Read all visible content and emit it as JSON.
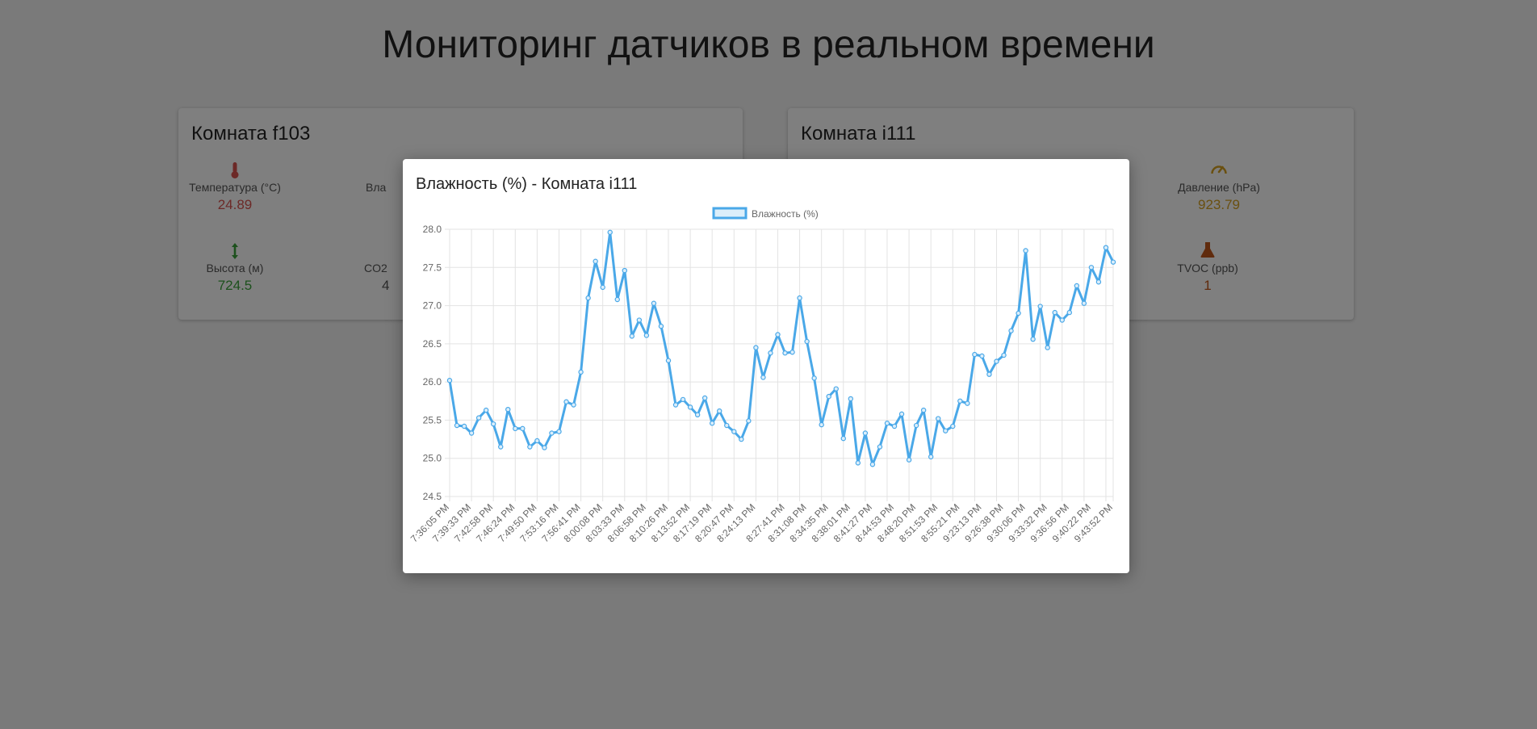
{
  "page": {
    "title": "Мониторинг датчиков в реальном времени"
  },
  "colors": {
    "temperature": "#d9534f",
    "altitude": "#3aa33a",
    "pressure": "#d4a020",
    "tvoc": "#c0571a",
    "chart_line": "#4aa8e8",
    "chart_fill": "rgba(74,168,232,0.2)"
  },
  "rooms": [
    {
      "title": "Комната f103",
      "sensors": [
        {
          "icon": "thermometer-icon",
          "label": "Температура (°C)",
          "value": "24.89"
        },
        {
          "icon": "arrows-vertical-icon",
          "label": "Высота (м)",
          "value": "724.5"
        },
        {
          "icon": "humidity-icon",
          "label": "Вла",
          "value": ""
        },
        {
          "icon": "co2-icon",
          "label": "CO2",
          "value": "4"
        }
      ]
    },
    {
      "title": "Комната i111",
      "sensors": [
        {
          "icon": "gauge-icon",
          "label": "Давление (hPa)",
          "value": "923.79"
        },
        {
          "icon": "flask-icon",
          "label": "TVOC (ppb)",
          "value": "1"
        }
      ]
    }
  ],
  "modal": {
    "title": "Влажность (%) - Комната i111"
  },
  "chart_data": {
    "type": "line",
    "legend": "Влажность (%)",
    "legend_position": "top",
    "grid": true,
    "ylim": [
      24.5,
      28.0
    ],
    "yticks": [
      "28.0",
      "27.5",
      "27.0",
      "26.5",
      "26.0",
      "25.5",
      "25.0",
      "24.5"
    ],
    "xtick_labels": [
      "7:36:05 PM",
      "7:39:33 PM",
      "7:42:58 PM",
      "7:46:24 PM",
      "7:49:50 PM",
      "7:53:16 PM",
      "7:56:41 PM",
      "8:00:08 PM",
      "8:03:33 PM",
      "8:06:58 PM",
      "8:10:26 PM",
      "8:13:52 PM",
      "8:17:19 PM",
      "8:20:47 PM",
      "8:24:13 PM",
      "8:27:41 PM",
      "8:31:08 PM",
      "8:34:35 PM",
      "8:38:01 PM",
      "8:41:27 PM",
      "8:44:53 PM",
      "8:48:20 PM",
      "8:51:53 PM",
      "8:55:21 PM",
      "9:23:13 PM",
      "9:26:38 PM",
      "9:30:06 PM",
      "9:33:32 PM",
      "9:36:56 PM",
      "9:40:22 PM",
      "9:43:52 PM"
    ],
    "values": [
      26.02,
      25.43,
      25.42,
      25.33,
      25.53,
      25.63,
      25.45,
      25.15,
      25.64,
      25.39,
      25.39,
      25.15,
      25.23,
      25.14,
      25.33,
      25.35,
      25.74,
      25.7,
      26.13,
      27.1,
      27.58,
      27.24,
      27.96,
      27.08,
      27.46,
      26.6,
      26.81,
      26.61,
      27.03,
      26.73,
      26.28,
      25.7,
      25.77,
      25.67,
      25.57,
      25.79,
      25.46,
      25.62,
      25.43,
      25.35,
      25.25,
      25.49,
      26.45,
      26.06,
      26.38,
      26.62,
      26.38,
      26.39,
      27.1,
      26.53,
      26.05,
      25.44,
      25.81,
      25.91,
      25.26,
      25.78,
      24.94,
      25.33,
      24.92,
      25.15,
      25.46,
      25.42,
      25.58,
      24.98,
      25.43,
      25.63,
      25.02,
      25.52,
      25.36,
      25.42,
      25.75,
      25.72,
      26.36,
      26.34,
      26.1,
      26.27,
      26.35,
      26.67,
      26.9,
      27.72,
      26.56,
      26.99,
      26.45,
      26.91,
      26.81,
      26.91,
      27.26,
      27.03,
      27.5,
      27.31,
      27.76,
      27.57
    ]
  }
}
